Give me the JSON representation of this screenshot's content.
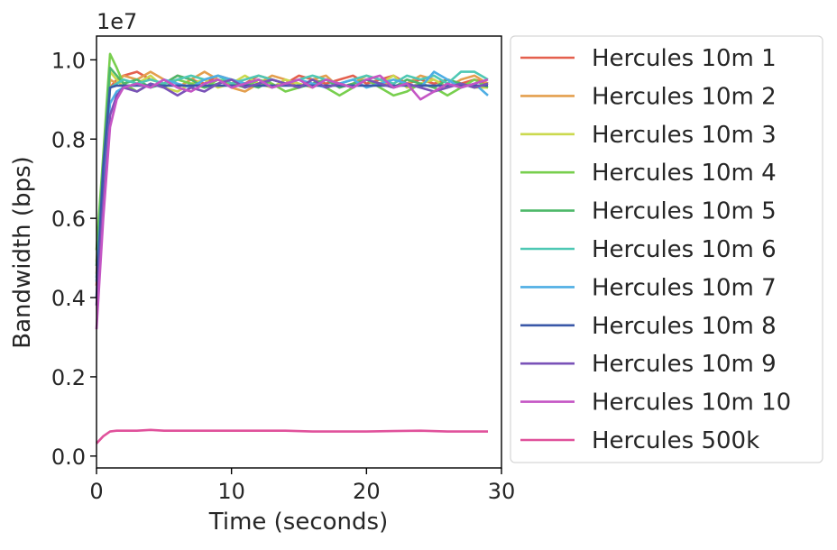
{
  "chart_data": {
    "type": "line",
    "xlabel": "Time (seconds)",
    "ylabel": "Bandwidth (bps)",
    "y_offset_label": "1e7",
    "xlim": [
      0,
      30
    ],
    "ylim": [
      -300000.0,
      10600000.0
    ],
    "x_ticks": [
      0,
      10,
      20,
      30
    ],
    "x_tick_labels": [
      "0",
      "10",
      "20",
      "30"
    ],
    "y_ticks": [
      0,
      2000000,
      4000000,
      6000000,
      8000000,
      10000000
    ],
    "y_tick_labels": [
      "0.0",
      "0.2",
      "0.4",
      "0.6",
      "0.8",
      "1.0"
    ],
    "grid": false,
    "legend_position": "outside-right",
    "series": [
      {
        "name": "Hercules 10m 1",
        "color": "#e4604e",
        "x": [
          0,
          0.5,
          1,
          1.5,
          2,
          3,
          4,
          5,
          6,
          7,
          8,
          9,
          10,
          11,
          12,
          13,
          14,
          15,
          16,
          17,
          18,
          19,
          20,
          21,
          22,
          23,
          24,
          25,
          26,
          27,
          28,
          29
        ],
        "y": [
          4300000,
          6600000,
          9300000,
          9500000,
          9600000,
          9700000,
          9500000,
          9400000,
          9600000,
          9500000,
          9400000,
          9600000,
          9500000,
          9400000,
          9600000,
          9500000,
          9400000,
          9600000,
          9500000,
          9400000,
          9500000,
          9600000,
          9400000,
          9500000,
          9600000,
          9400000,
          9500000,
          9400000,
          9500000,
          9400000,
          9500000,
          9400000
        ]
      },
      {
        "name": "Hercules 10m 2",
        "color": "#e49f4e",
        "x": [
          0,
          0.5,
          1,
          1.5,
          2,
          3,
          4,
          5,
          6,
          7,
          8,
          9,
          10,
          11,
          12,
          13,
          14,
          15,
          16,
          17,
          18,
          19,
          20,
          21,
          22,
          23,
          24,
          25,
          26,
          27,
          28,
          29
        ],
        "y": [
          4600000,
          6900000,
          9500000,
          9400000,
          9600000,
          9500000,
          9700000,
          9500000,
          9300000,
          9500000,
          9700000,
          9500000,
          9300000,
          9200000,
          9400000,
          9600000,
          9500000,
          9300000,
          9500000,
          9600000,
          9300000,
          9400000,
          9600000,
          9500000,
          9300000,
          9400000,
          9600000,
          9500000,
          9300000,
          9500000,
          9600000,
          9400000
        ]
      },
      {
        "name": "Hercules 10m 3",
        "color": "#cbd94e",
        "x": [
          0,
          0.5,
          1,
          1.5,
          2,
          3,
          4,
          5,
          6,
          7,
          8,
          9,
          10,
          11,
          12,
          13,
          14,
          15,
          16,
          17,
          18,
          19,
          20,
          21,
          22,
          23,
          24,
          25,
          26,
          27,
          28,
          29
        ],
        "y": [
          4900000,
          7200000,
          9700000,
          9500000,
          9300000,
          9400000,
          9600000,
          9300000,
          9200000,
          9400000,
          9500000,
          9300000,
          9400000,
          9600000,
          9400000,
          9300000,
          9500000,
          9400000,
          9300000,
          9500000,
          9400000,
          9300000,
          9500000,
          9400000,
          9600000,
          9300000,
          9400000,
          9500000,
          9300000,
          9400000,
          9300000,
          9300000
        ]
      },
      {
        "name": "Hercules 10m 4",
        "color": "#78cf4e",
        "x": [
          0,
          0.5,
          1,
          1.5,
          2,
          3,
          4,
          5,
          6,
          7,
          8,
          9,
          10,
          11,
          12,
          13,
          14,
          15,
          16,
          17,
          18,
          19,
          20,
          21,
          22,
          23,
          24,
          25,
          26,
          27,
          28,
          29
        ],
        "y": [
          5200000,
          7600000,
          10150000,
          9800000,
          9400000,
          9200000,
          9400000,
          9300000,
          9500000,
          9400000,
          9300000,
          9500000,
          9400000,
          9300000,
          9500000,
          9400000,
          9200000,
          9300000,
          9500000,
          9300000,
          9100000,
          9300000,
          9500000,
          9300000,
          9100000,
          9200000,
          9400000,
          9300000,
          9100000,
          9300000,
          9500000,
          9300000
        ]
      },
      {
        "name": "Hercules 10m 5",
        "color": "#4eb86a",
        "x": [
          0,
          0.5,
          1,
          1.5,
          2,
          3,
          4,
          5,
          6,
          7,
          8,
          9,
          10,
          11,
          12,
          13,
          14,
          15,
          16,
          17,
          18,
          19,
          20,
          21,
          22,
          23,
          24,
          25,
          26,
          27,
          28,
          29
        ],
        "y": [
          4800000,
          7400000,
          9800000,
          9600000,
          9400000,
          9500000,
          9300000,
          9400000,
          9600000,
          9500000,
          9300000,
          9400000,
          9500000,
          9400000,
          9300000,
          9500000,
          9400000,
          9300000,
          9400000,
          9500000,
          9300000,
          9400000,
          9500000,
          9400000,
          9300000,
          9500000,
          9400000,
          9300000,
          9500000,
          9400000,
          9300000,
          9400000
        ]
      },
      {
        "name": "Hercules 10m 6",
        "color": "#4ec8b4",
        "x": [
          0,
          0.5,
          1,
          1.5,
          2,
          3,
          4,
          5,
          6,
          7,
          8,
          9,
          10,
          11,
          12,
          13,
          14,
          15,
          16,
          17,
          18,
          19,
          20,
          21,
          22,
          23,
          24,
          25,
          26,
          27,
          28,
          29
        ],
        "y": [
          4500000,
          7000000,
          9300000,
          9400000,
          9500000,
          9400000,
          9500000,
          9400000,
          9500000,
          9600000,
          9500000,
          9600000,
          9400000,
          9500000,
          9600000,
          9500000,
          9400000,
          9500000,
          9600000,
          9500000,
          9400000,
          9500000,
          9600000,
          9500000,
          9400000,
          9600000,
          9500000,
          9600000,
          9400000,
          9700000,
          9700000,
          9500000
        ]
      },
      {
        "name": "Hercules 10m 7",
        "color": "#4eaee4",
        "x": [
          0,
          0.5,
          1,
          1.5,
          2,
          3,
          4,
          5,
          6,
          7,
          8,
          9,
          10,
          11,
          12,
          13,
          14,
          15,
          16,
          17,
          18,
          19,
          20,
          21,
          22,
          23,
          24,
          25,
          26,
          27,
          28,
          29
        ],
        "y": [
          4400000,
          6800000,
          8900000,
          9200000,
          9300000,
          9400000,
          9300000,
          9500000,
          9400000,
          9300000,
          9500000,
          9600000,
          9500000,
          9400000,
          9500000,
          9300000,
          9400000,
          9500000,
          9400000,
          9300000,
          9400000,
          9500000,
          9300000,
          9400000,
          9500000,
          9400000,
          9300000,
          9700000,
          9500000,
          9300000,
          9400000,
          9100000
        ]
      },
      {
        "name": "Hercules 10m 8",
        "color": "#3a58a8",
        "x": [
          0,
          0.5,
          1,
          1.5,
          2,
          3,
          4,
          5,
          6,
          7,
          8,
          9,
          10,
          11,
          12,
          13,
          14,
          15,
          16,
          17,
          18,
          19,
          20,
          21,
          22,
          23,
          24,
          25,
          26,
          27,
          28,
          29
        ],
        "y": [
          4000000,
          7300000,
          9300000,
          9350000,
          9350000,
          9350000,
          9350000,
          9350000,
          9350000,
          9350000,
          9350000,
          9350000,
          9350000,
          9350000,
          9350000,
          9350000,
          9350000,
          9350000,
          9350000,
          9350000,
          9350000,
          9350000,
          9350000,
          9350000,
          9350000,
          9350000,
          9350000,
          9350000,
          9350000,
          9350000,
          9350000,
          9350000
        ]
      },
      {
        "name": "Hercules 10m 9",
        "color": "#7a52b8",
        "x": [
          0,
          0.5,
          1,
          1.5,
          2,
          3,
          4,
          5,
          6,
          7,
          8,
          9,
          10,
          11,
          12,
          13,
          14,
          15,
          16,
          17,
          18,
          19,
          20,
          21,
          22,
          23,
          24,
          25,
          26,
          27,
          28,
          29
        ],
        "y": [
          3800000,
          6400000,
          8600000,
          9100000,
          9300000,
          9200000,
          9400000,
          9300000,
          9100000,
          9300000,
          9200000,
          9400000,
          9500000,
          9300000,
          9400000,
          9500000,
          9400000,
          9300000,
          9500000,
          9300000,
          9400000,
          9300000,
          9500000,
          9400000,
          9300000,
          9400000,
          9300000,
          9200000,
          9300000,
          9400000,
          9300000,
          9400000
        ]
      },
      {
        "name": "Hercules 10m 10",
        "color": "#c455c4",
        "x": [
          0,
          0.5,
          1,
          1.5,
          2,
          3,
          4,
          5,
          6,
          7,
          8,
          9,
          10,
          11,
          12,
          13,
          14,
          15,
          16,
          17,
          18,
          19,
          20,
          21,
          22,
          23,
          24,
          25,
          26,
          27,
          28,
          29
        ],
        "y": [
          3200000,
          6000000,
          8300000,
          9000000,
          9300000,
          9400000,
          9300000,
          9500000,
          9300000,
          9200000,
          9400000,
          9500000,
          9300000,
          9400000,
          9500000,
          9300000,
          9400000,
          9500000,
          9300000,
          9500000,
          9400000,
          9300000,
          9500000,
          9600000,
          9300000,
          9400000,
          9000000,
          9200000,
          9400000,
          9300000,
          9400000,
          9500000
        ]
      },
      {
        "name": "Hercules 500k",
        "color": "#e0519b",
        "x": [
          0,
          0.5,
          1,
          1.5,
          2,
          3,
          4,
          5,
          6,
          8,
          10,
          12,
          14,
          16,
          18,
          20,
          22,
          24,
          26,
          28,
          29
        ],
        "y": [
          320000,
          500000,
          620000,
          640000,
          640000,
          640000,
          660000,
          640000,
          640000,
          640000,
          640000,
          640000,
          640000,
          620000,
          620000,
          620000,
          630000,
          640000,
          620000,
          620000,
          620000
        ]
      }
    ]
  }
}
